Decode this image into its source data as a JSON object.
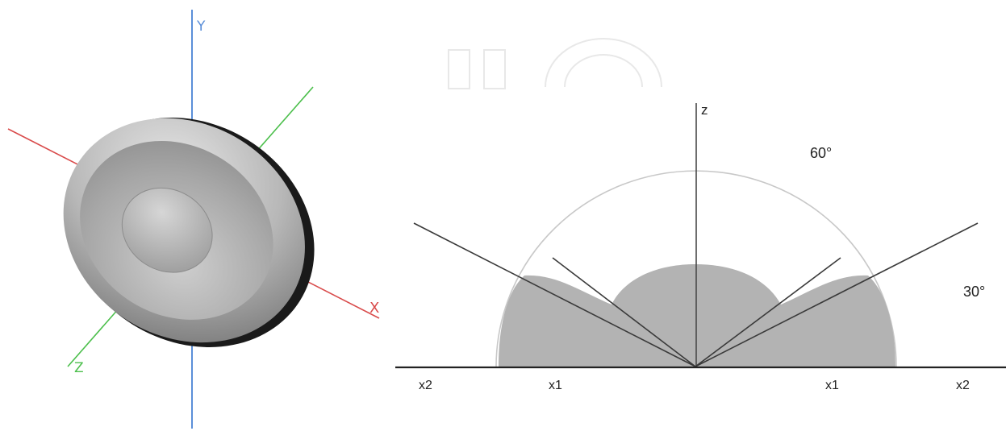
{
  "left_figure": {
    "axes": {
      "y_label": "Y",
      "x_label": "X",
      "z_label": "Z"
    },
    "colors": {
      "y_axis": "#5b8fd8",
      "x_axis": "#d94b4b",
      "z_axis": "#4cbf4c",
      "shape_fill": "#b9b9b9",
      "shape_rim": "#1a1a1a"
    }
  },
  "right_figure": {
    "z_label": "z",
    "angle_labels": [
      "60°",
      "30°"
    ],
    "ground_labels": [
      "x2",
      "x1",
      "x1",
      "x2"
    ],
    "colors": {
      "lobe_fill": "#b3b3b3",
      "line": "#3a3a3a",
      "circle": "#c8c8c8",
      "ground": "#222222",
      "watermark": "#d0d0d0"
    }
  }
}
